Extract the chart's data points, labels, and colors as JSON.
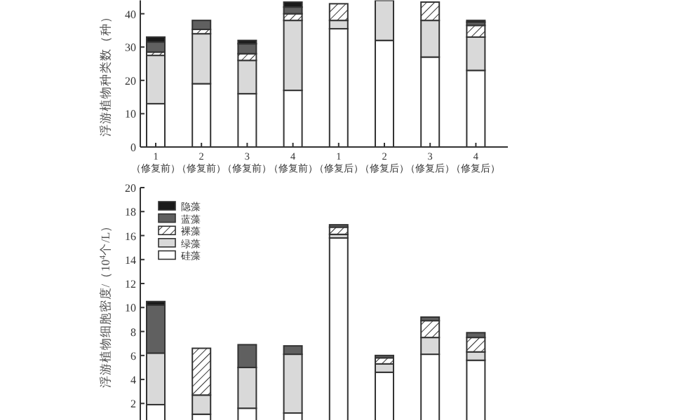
{
  "chart_data": [
    {
      "type": "bar",
      "stacked": true,
      "ylabel": "浮游植物种类数（种）",
      "categories": [
        "1\n（修复前）",
        "2\n（修复前）",
        "3\n（修复前）",
        "4\n（修复前）",
        "1\n（修复后）",
        "2\n（修复后）",
        "3\n（修复后）",
        "4\n（修复后）"
      ],
      "ylim": [
        0,
        44
      ],
      "yticks": [
        0,
        10,
        20,
        30,
        40
      ],
      "legend": false,
      "series": [
        {
          "color": "#ffffff",
          "values": [
            13,
            19,
            16,
            17,
            35.5,
            32,
            27,
            23
          ]
        },
        {
          "color": "#d9d9d9",
          "values": [
            14.5,
            15,
            10,
            21,
            2.5,
            12,
            11,
            10
          ]
        },
        {
          "color": "#333333",
          "values": [
            1,
            1.3,
            2,
            2,
            5,
            null,
            5.5,
            3.5
          ]
        },
        {
          "color": "#606060",
          "values": [
            3,
            2.7,
            3,
            2,
            null,
            null,
            null,
            1
          ]
        },
        {
          "color": "#1a1a1a",
          "values": [
            1.5,
            null,
            1,
            1.5,
            null,
            null,
            null,
            0.5
          ]
        }
      ]
    },
    {
      "type": "bar",
      "stacked": true,
      "ylabel": "浮游植物细胞密度/（10$^{4}$个/L）",
      "categories": [
        null,
        null,
        null,
        null,
        null,
        null,
        null,
        null
      ],
      "ylim": [
        0,
        20
      ],
      "yticks": [
        2,
        4,
        6,
        8,
        10,
        12,
        14,
        16,
        18,
        20
      ],
      "legend": "top left",
      "series": [
        {
          "name": "硅藻",
          "color": "#ffffff",
          "values": [
            1.9,
            1.1,
            1.6,
            1.2,
            15.8,
            4.6,
            6.1,
            5.6
          ]
        },
        {
          "name": "绿藻",
          "color": "#d9d9d9",
          "values": [
            4.3,
            1.6,
            3.4,
            4.9,
            0.3,
            0.7,
            1.4,
            0.7
          ]
        },
        {
          "name": "裸藻",
          "color": "#333333",
          "values": [
            null,
            3.9,
            null,
            null,
            0.6,
            0.5,
            1.4,
            1.2
          ]
        },
        {
          "name": "蓝藻",
          "color": "#606060",
          "values": [
            4,
            null,
            1.9,
            0.7,
            0.2,
            0.2,
            0.3,
            0.4
          ]
        },
        {
          "name": "隐藻",
          "color": "#1a1a1a",
          "values": [
            0.3,
            null,
            null,
            null,
            null,
            null,
            null,
            null
          ]
        }
      ]
    }
  ]
}
